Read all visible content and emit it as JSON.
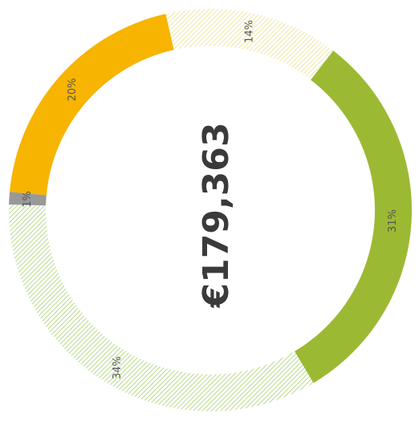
{
  "chart_data": {
    "type": "donut",
    "center_text": "€179,363",
    "values": [
      14,
      31,
      34,
      1,
      20
    ],
    "value_labels": [
      "14%",
      "31%",
      "34%",
      "1%",
      "20%"
    ],
    "colors": [
      "#efe6a6",
      "#9cb934",
      "#b9d98a",
      "#999999",
      "#f7b400"
    ],
    "hatched": [
      true,
      false,
      true,
      false,
      false
    ]
  }
}
